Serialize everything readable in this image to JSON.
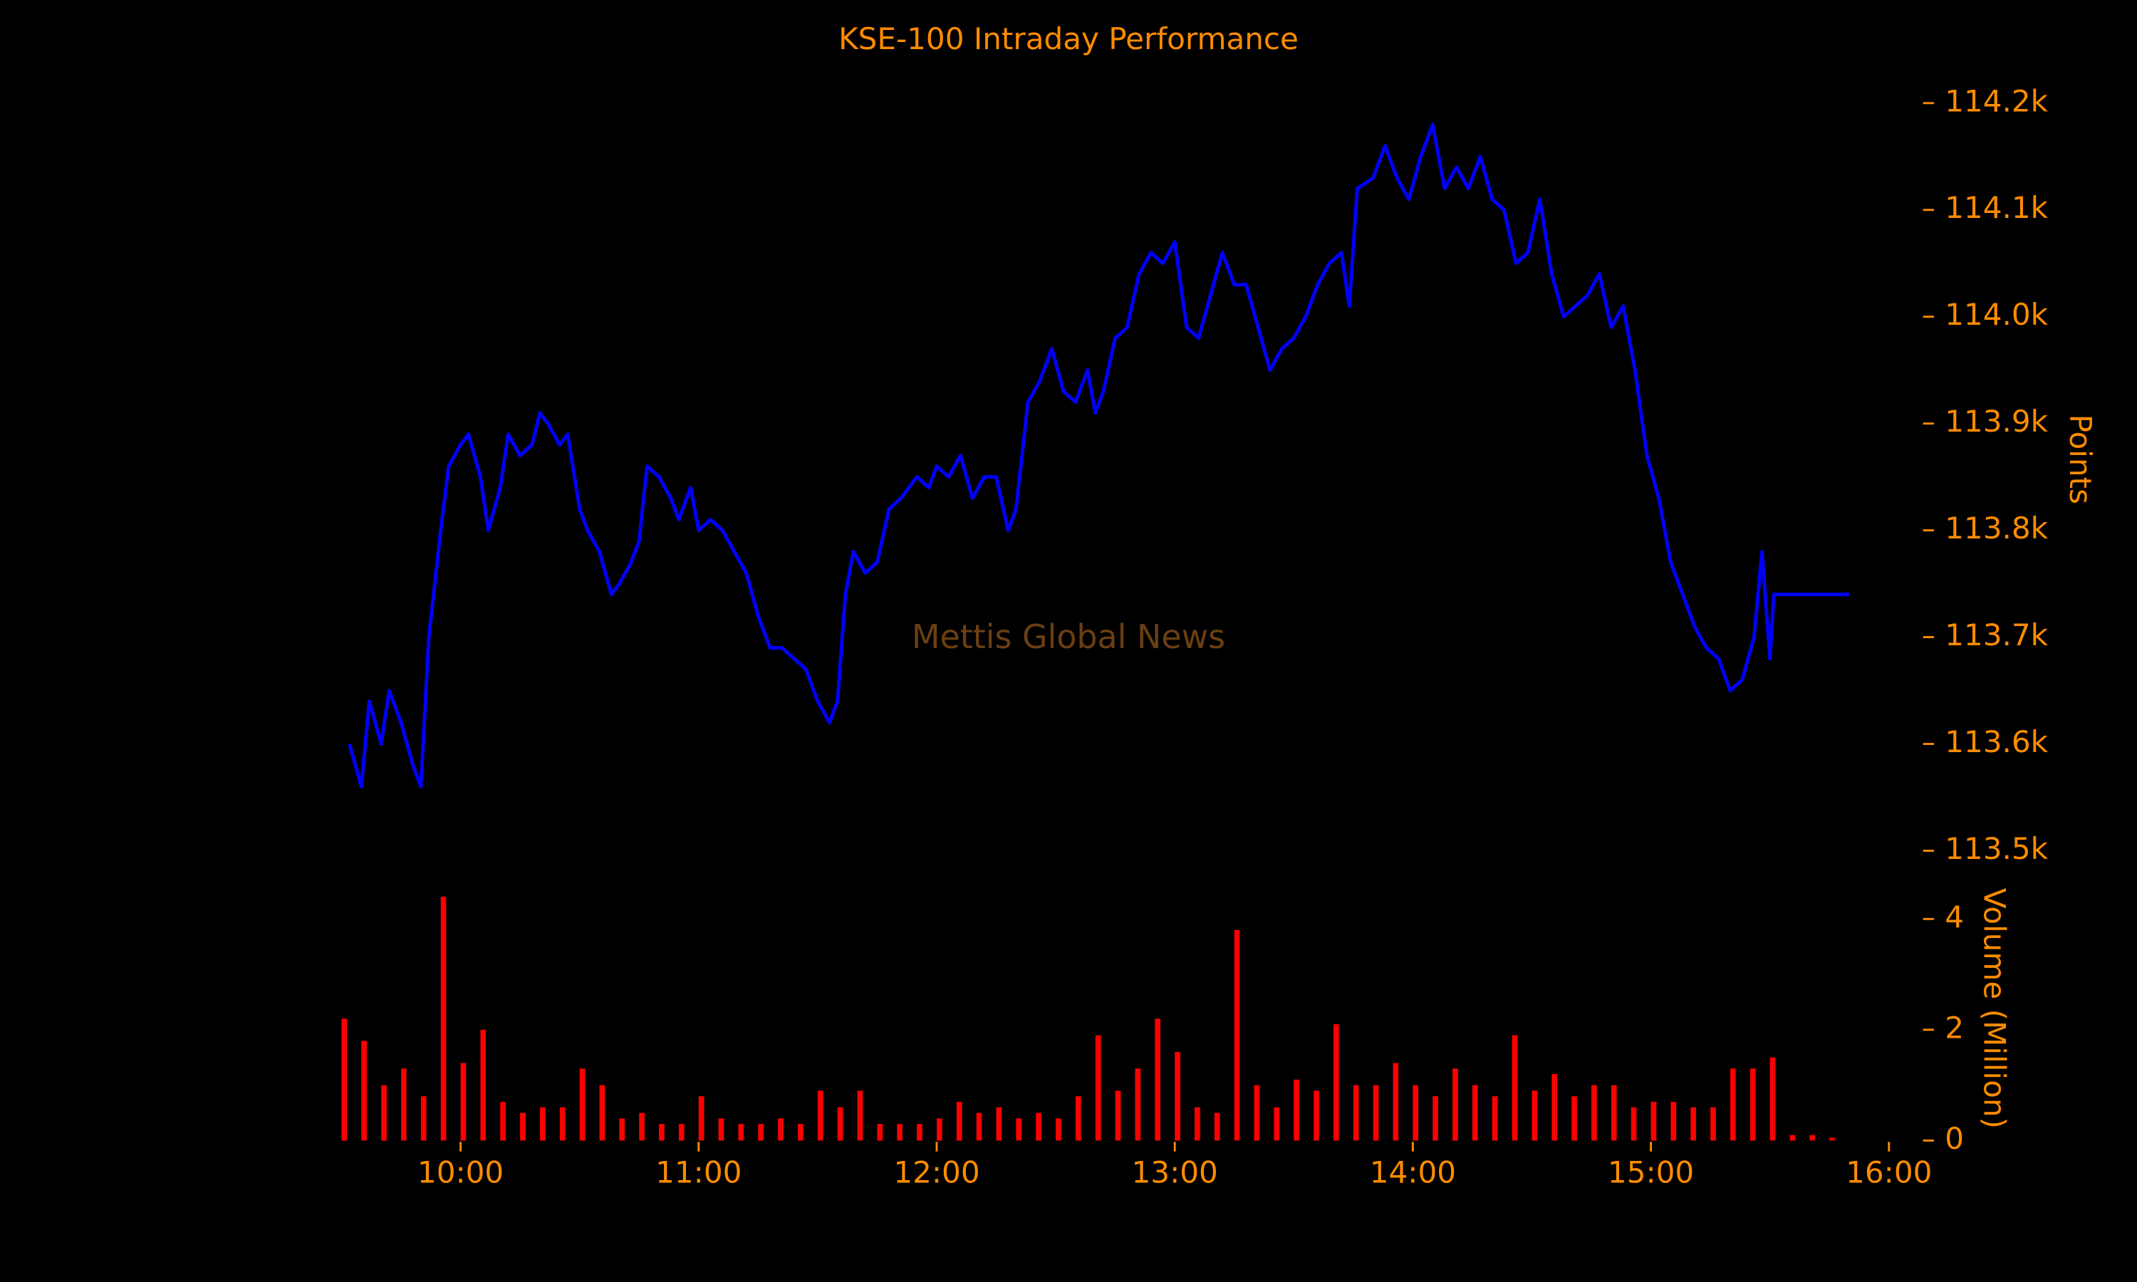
{
  "chart_data": [
    {
      "type": "line",
      "title": "KSE-100 Intraday Performance",
      "ylabel": "Points",
      "annotation": "Mettis Global News",
      "color": "#0000ff",
      "xlim": [
        "09:30",
        "16:00"
      ],
      "x": [
        "09:32",
        "09:35",
        "09:37",
        "09:40",
        "09:42",
        "09:45",
        "09:48",
        "09:50",
        "09:52",
        "09:55",
        "09:57",
        "10:00",
        "10:02",
        "10:05",
        "10:07",
        "10:10",
        "10:12",
        "10:15",
        "10:18",
        "10:20",
        "10:22",
        "10:25",
        "10:27",
        "10:30",
        "10:32",
        "10:35",
        "10:38",
        "10:40",
        "10:43",
        "10:45",
        "10:47",
        "10:50",
        "10:53",
        "10:55",
        "10:58",
        "11:00",
        "11:03",
        "11:06",
        "11:09",
        "11:12",
        "11:15",
        "11:18",
        "11:21",
        "11:24",
        "11:27",
        "11:30",
        "11:33",
        "11:35",
        "11:37",
        "11:39",
        "11:42",
        "11:45",
        "11:48",
        "11:51",
        "11:55",
        "11:58",
        "12:00",
        "12:03",
        "12:06",
        "12:09",
        "12:12",
        "12:15",
        "12:18",
        "12:20",
        "12:23",
        "12:26",
        "12:29",
        "12:32",
        "12:35",
        "12:38",
        "12:40",
        "12:42",
        "12:45",
        "12:48",
        "12:51",
        "12:54",
        "12:57",
        "13:00",
        "13:03",
        "13:06",
        "13:09",
        "13:12",
        "13:15",
        "13:18",
        "13:21",
        "13:24",
        "13:27",
        "13:30",
        "13:33",
        "13:36",
        "13:39",
        "13:42",
        "13:44",
        "13:46",
        "13:50",
        "13:53",
        "13:56",
        "13:59",
        "14:02",
        "14:05",
        "14:08",
        "14:11",
        "14:14",
        "14:17",
        "14:20",
        "14:23",
        "14:26",
        "14:29",
        "14:32",
        "14:35",
        "14:38",
        "14:41",
        "14:44",
        "14:47",
        "14:50",
        "14:53",
        "14:56",
        "14:59",
        "15:02",
        "15:05",
        "15:08",
        "15:11",
        "15:14",
        "15:17",
        "15:20",
        "15:23",
        "15:26",
        "15:28",
        "15:30",
        "15:31",
        "15:50"
      ],
      "values": [
        113600,
        113560,
        113640,
        113600,
        113650,
        113620,
        113580,
        113560,
        113700,
        113800,
        113860,
        113880,
        113890,
        113850,
        113800,
        113840,
        113890,
        113870,
        113880,
        113910,
        113900,
        113880,
        113890,
        113820,
        113800,
        113780,
        113740,
        113750,
        113770,
        113790,
        113860,
        113850,
        113830,
        113810,
        113840,
        113800,
        113810,
        113800,
        113780,
        113760,
        113720,
        113690,
        113690,
        113680,
        113670,
        113640,
        113620,
        113640,
        113740,
        113780,
        113760,
        113770,
        113820,
        113830,
        113850,
        113840,
        113860,
        113850,
        113870,
        113830,
        113850,
        113850,
        113800,
        113820,
        113920,
        113940,
        113970,
        113930,
        113920,
        113950,
        113910,
        113930,
        113980,
        113990,
        114040,
        114060,
        114050,
        114070,
        113990,
        113980,
        114020,
        114060,
        114030,
        114030,
        113990,
        113950,
        113970,
        113980,
        114000,
        114030,
        114050,
        114060,
        114010,
        114120,
        114130,
        114160,
        114130,
        114110,
        114150,
        114180,
        114120,
        114140,
        114120,
        114150,
        114110,
        114100,
        114050,
        114060,
        114110,
        114040,
        114000,
        114010,
        114020,
        114040,
        113990,
        114010,
        113950,
        113870,
        113830,
        113770,
        113740,
        113710,
        113690,
        113680,
        113650,
        113660,
        113700,
        113780,
        113680,
        113740,
        113740
      ],
      "ylim": [
        113480,
        114220
      ],
      "yticks": [
        {
          "value": 113500,
          "label": "113.5k"
        },
        {
          "value": 113600,
          "label": "113.6k"
        },
        {
          "value": 113700,
          "label": "113.7k"
        },
        {
          "value": 113800,
          "label": "113.8k"
        },
        {
          "value": 113900,
          "label": "113.9k"
        },
        {
          "value": 114000,
          "label": "114.0k"
        },
        {
          "value": 114100,
          "label": "114.1k"
        },
        {
          "value": 114200,
          "label": "114.2k"
        }
      ]
    },
    {
      "type": "bar",
      "ylabel": "Volume (Million)",
      "color": "#ff0000",
      "xlim": [
        "09:30",
        "16:00"
      ],
      "xticks": [
        "10:00",
        "11:00",
        "12:00",
        "13:00",
        "14:00",
        "15:00",
        "16:00"
      ],
      "x": [
        "09:30",
        "09:35",
        "09:40",
        "09:45",
        "09:50",
        "09:55",
        "10:00",
        "10:05",
        "10:10",
        "10:15",
        "10:20",
        "10:25",
        "10:30",
        "10:35",
        "10:40",
        "10:45",
        "10:50",
        "10:55",
        "11:00",
        "11:05",
        "11:10",
        "11:15",
        "11:20",
        "11:25",
        "11:30",
        "11:35",
        "11:40",
        "11:45",
        "11:50",
        "11:55",
        "12:00",
        "12:05",
        "12:10",
        "12:15",
        "12:20",
        "12:25",
        "12:30",
        "12:35",
        "12:40",
        "12:45",
        "12:50",
        "12:55",
        "13:00",
        "13:05",
        "13:10",
        "13:15",
        "13:20",
        "13:25",
        "13:30",
        "13:35",
        "13:40",
        "13:45",
        "13:50",
        "13:55",
        "14:00",
        "14:05",
        "14:10",
        "14:15",
        "14:20",
        "14:25",
        "14:30",
        "14:35",
        "14:40",
        "14:45",
        "14:50",
        "14:55",
        "15:00",
        "15:05",
        "15:10",
        "15:15",
        "15:20",
        "15:25",
        "15:30",
        "15:35",
        "15:40",
        "15:45"
      ],
      "values": [
        2.2,
        1.8,
        1.0,
        1.3,
        0.8,
        4.4,
        1.4,
        2.0,
        0.7,
        0.5,
        0.6,
        0.6,
        1.3,
        1.0,
        0.4,
        0.5,
        0.3,
        0.3,
        0.8,
        0.4,
        0.3,
        0.3,
        0.4,
        0.3,
        0.9,
        0.6,
        0.9,
        0.3,
        0.3,
        0.3,
        0.4,
        0.7,
        0.5,
        0.6,
        0.4,
        0.5,
        0.4,
        0.8,
        1.9,
        0.9,
        1.3,
        2.2,
        1.6,
        0.6,
        0.5,
        3.8,
        1.0,
        0.6,
        1.1,
        0.9,
        2.1,
        1.0,
        1.0,
        1.4,
        1.0,
        0.8,
        1.3,
        1.0,
        0.8,
        1.9,
        0.9,
        1.2,
        0.8,
        1.0,
        1.0,
        0.6,
        0.7,
        0.7,
        0.6,
        0.6,
        1.3,
        1.3,
        1.5,
        0.1,
        0.1,
        0.05
      ],
      "ylim": [
        0,
        4.6
      ],
      "yticks": [
        0,
        2,
        4
      ]
    }
  ]
}
